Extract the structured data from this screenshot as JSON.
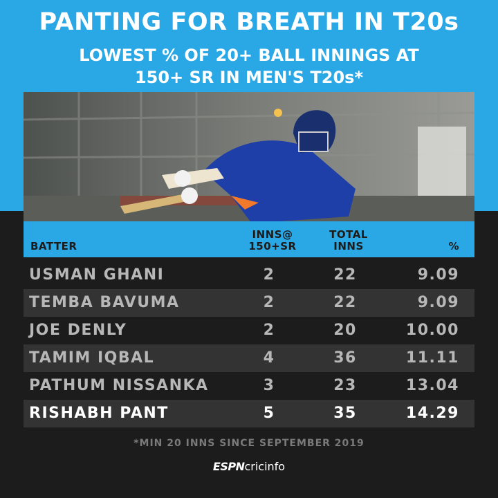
{
  "header": {
    "title": "PANTING FOR BREATH IN T20s",
    "subtitle_line1": "LOWEST % OF 20+ BALL INNINGS AT",
    "subtitle_line2": "150+ SR IN MEN'S T20s*"
  },
  "photo": {
    "subject": "batter-diving-photo"
  },
  "chart_data": {
    "type": "table",
    "columns": {
      "batter": "BATTER",
      "inns_line1": "INNS@",
      "inns_line2": "150+SR",
      "total_line1": "TOTAL",
      "total_line2": "INNS",
      "pct": "%"
    },
    "rows": [
      {
        "batter": "USMAN GHANI",
        "inns": "2",
        "total": "22",
        "pct": "9.09"
      },
      {
        "batter": "TEMBA BAVUMA",
        "inns": "2",
        "total": "22",
        "pct": "9.09"
      },
      {
        "batter": "JOE DENLY",
        "inns": "2",
        "total": "20",
        "pct": "10.00"
      },
      {
        "batter": "TAMIM IQBAL",
        "inns": "4",
        "total": "36",
        "pct": "11.11"
      },
      {
        "batter": "PATHUM NISSANKA",
        "inns": "3",
        "total": "23",
        "pct": "13.04"
      },
      {
        "batter": "RISHABH PANT",
        "inns": "5",
        "total": "35",
        "pct": "14.29"
      }
    ],
    "highlight_row": "RISHABH PANT"
  },
  "footnote": "*MIN 20 INNS SINCE SEPTEMBER 2019",
  "logo": {
    "espn": "ESPN",
    "cricinfo": "cricinfo"
  },
  "colors": {
    "accent": "#2aa8e6",
    "background": "#1c1c1c",
    "row_alt": "#333333",
    "text_dim": "#b7b7b7",
    "text_highlight": "#ffffff"
  }
}
